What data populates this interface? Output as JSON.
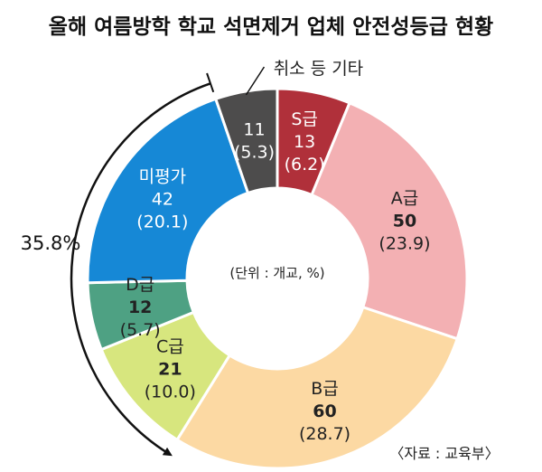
{
  "title": "올해 여름방학 학교 석면제거 업체 안전성등급 현황",
  "source": "〈자료 : 교육부〉",
  "center_note": "(단위 : 개교, %)",
  "bracket_label": "35.8%",
  "chart_data": {
    "type": "pie",
    "donut": true,
    "title": "올해 여름방학 학교 석면제거 업체 안전성등급 현황",
    "unit_note": "(단위 : 개교, %)",
    "slices": [
      {
        "label": "S급",
        "value": 13,
        "percent": 6.2,
        "color": "#b0303a",
        "text_color": "#ffffff",
        "value_bold": false
      },
      {
        "label": "A급",
        "value": 50,
        "percent": 23.9,
        "color": "#f3b0b3",
        "text_color": "#222222",
        "value_bold": true
      },
      {
        "label": "B급",
        "value": 60,
        "percent": 28.7,
        "color": "#fcd9a3",
        "text_color": "#222222",
        "value_bold": true
      },
      {
        "label": "C급",
        "value": 21,
        "percent": 10.0,
        "color": "#d7e67e",
        "text_color": "#222222",
        "value_bold": true
      },
      {
        "label": "D급",
        "value": 12,
        "percent": 5.7,
        "color": "#4ea183",
        "text_color": "#222222",
        "value_bold": true
      },
      {
        "label": "미평가",
        "value": 42,
        "percent": 20.1,
        "color": "#1688d6",
        "text_color": "#ffffff",
        "value_bold": false
      },
      {
        "label": "취소 등 기타",
        "value": 11,
        "percent": 5.3,
        "color": "#4d4c4c",
        "text_color": "#ffffff",
        "value_bold": false
      }
    ],
    "annotation": {
      "text": "35.8%",
      "spans": [
        "C급",
        "D급",
        "미평가"
      ]
    }
  }
}
